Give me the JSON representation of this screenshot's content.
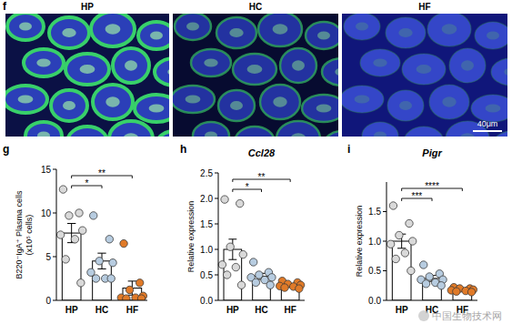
{
  "chart_data": [
    {
      "type": "bar",
      "panel": "g",
      "y_label": [
        "B220⁻IgA⁺ Plasma cells",
        "(x10⁵ cells)"
      ],
      "categories": [
        "HP",
        "HC",
        "HF"
      ],
      "values": [
        7.7,
        4.5,
        1.4
      ],
      "errors": [
        1.1,
        0.9,
        0.8
      ],
      "points": [
        [
          12.7,
          10,
          9.7,
          8,
          7.5,
          7,
          4.7,
          2
        ],
        [
          9.7,
          7,
          4.5,
          4.3,
          3.2,
          2.5,
          2.5,
          2.5
        ],
        [
          6.5,
          2,
          1.2,
          0.5,
          0.3,
          0.3,
          0.2,
          0.2
        ]
      ],
      "colors": [
        "#d9d9d9",
        "#b7cce0",
        "#e07a28"
      ],
      "ylim": [
        0,
        15
      ],
      "yticks": [
        0,
        5,
        10,
        15
      ],
      "annotations": [
        {
          "from": "HP",
          "to": "HC",
          "label": "*"
        },
        {
          "from": "HP",
          "to": "HF",
          "label": "**"
        }
      ]
    },
    {
      "type": "bar",
      "panel": "h",
      "title": "Ccl28",
      "y_label": [
        "Relative expression"
      ],
      "categories": [
        "HP",
        "HC",
        "HF"
      ],
      "values": [
        1.0,
        0.47,
        0.3
      ],
      "errors": [
        0.2,
        0.06,
        0.03
      ],
      "points": [
        [
          1.98,
          1.9,
          1.05,
          0.9,
          0.7,
          0.65,
          0.5,
          0.3
        ],
        [
          0.75,
          0.55,
          0.5,
          0.45,
          0.45,
          0.4,
          0.35,
          0.3
        ],
        [
          0.38,
          0.35,
          0.32,
          0.3,
          0.28,
          0.27,
          0.25,
          0.23
        ]
      ],
      "colors": [
        "#d9d9d9",
        "#b7cce0",
        "#e07a28"
      ],
      "ylim": [
        0,
        2.5
      ],
      "yticks": [
        {
          "value": 0,
          "label": "0.0"
        },
        {
          "value": 0.5,
          "label": "0.5"
        },
        {
          "value": 1,
          "label": "1.0"
        },
        {
          "value": 1.5,
          "label": "1.5"
        },
        {
          "value": 2,
          "label": "2.0"
        },
        {
          "value": 2.5,
          "label": "2.5"
        }
      ],
      "annotations": [
        {
          "from": "HP",
          "to": "HC",
          "label": "*"
        },
        {
          "from": "HP",
          "to": "HF",
          "label": "**"
        }
      ]
    },
    {
      "type": "bar",
      "panel": "i",
      "title": "Pigr",
      "y_label": [
        "Relative expression"
      ],
      "categories": [
        "HP",
        "HC",
        "HF"
      ],
      "values": [
        1.0,
        0.37,
        0.18
      ],
      "errors": [
        0.12,
        0.05,
        0.02
      ],
      "points": [
        [
          1.6,
          1.3,
          1.1,
          1.0,
          0.95,
          0.8,
          0.7,
          0.5
        ],
        [
          0.6,
          0.45,
          0.4,
          0.35,
          0.35,
          0.3,
          0.28,
          0.25
        ],
        [
          0.22,
          0.2,
          0.2,
          0.18,
          0.17,
          0.16,
          0.15,
          0.14
        ]
      ],
      "colors": [
        "#d9d9d9",
        "#b7cce0",
        "#e07a28"
      ],
      "ylim": [
        0,
        2.0
      ],
      "yticks": [
        {
          "value": 0,
          "label": "0.0"
        },
        {
          "value": 0.5,
          "label": "0.5"
        },
        {
          "value": 1,
          "label": "1.0"
        },
        {
          "value": 1.5,
          "label": "1.5"
        }
      ],
      "annotations": [
        {
          "from": "HP",
          "to": "HC",
          "label": "***"
        },
        {
          "from": "HP",
          "to": "HF",
          "label": "****"
        }
      ]
    }
  ],
  "images": {
    "panel": "f",
    "labels": [
      "HP",
      "HC",
      "HF"
    ],
    "scale_bar": "40μm"
  },
  "watermark": "中国生物技术网"
}
